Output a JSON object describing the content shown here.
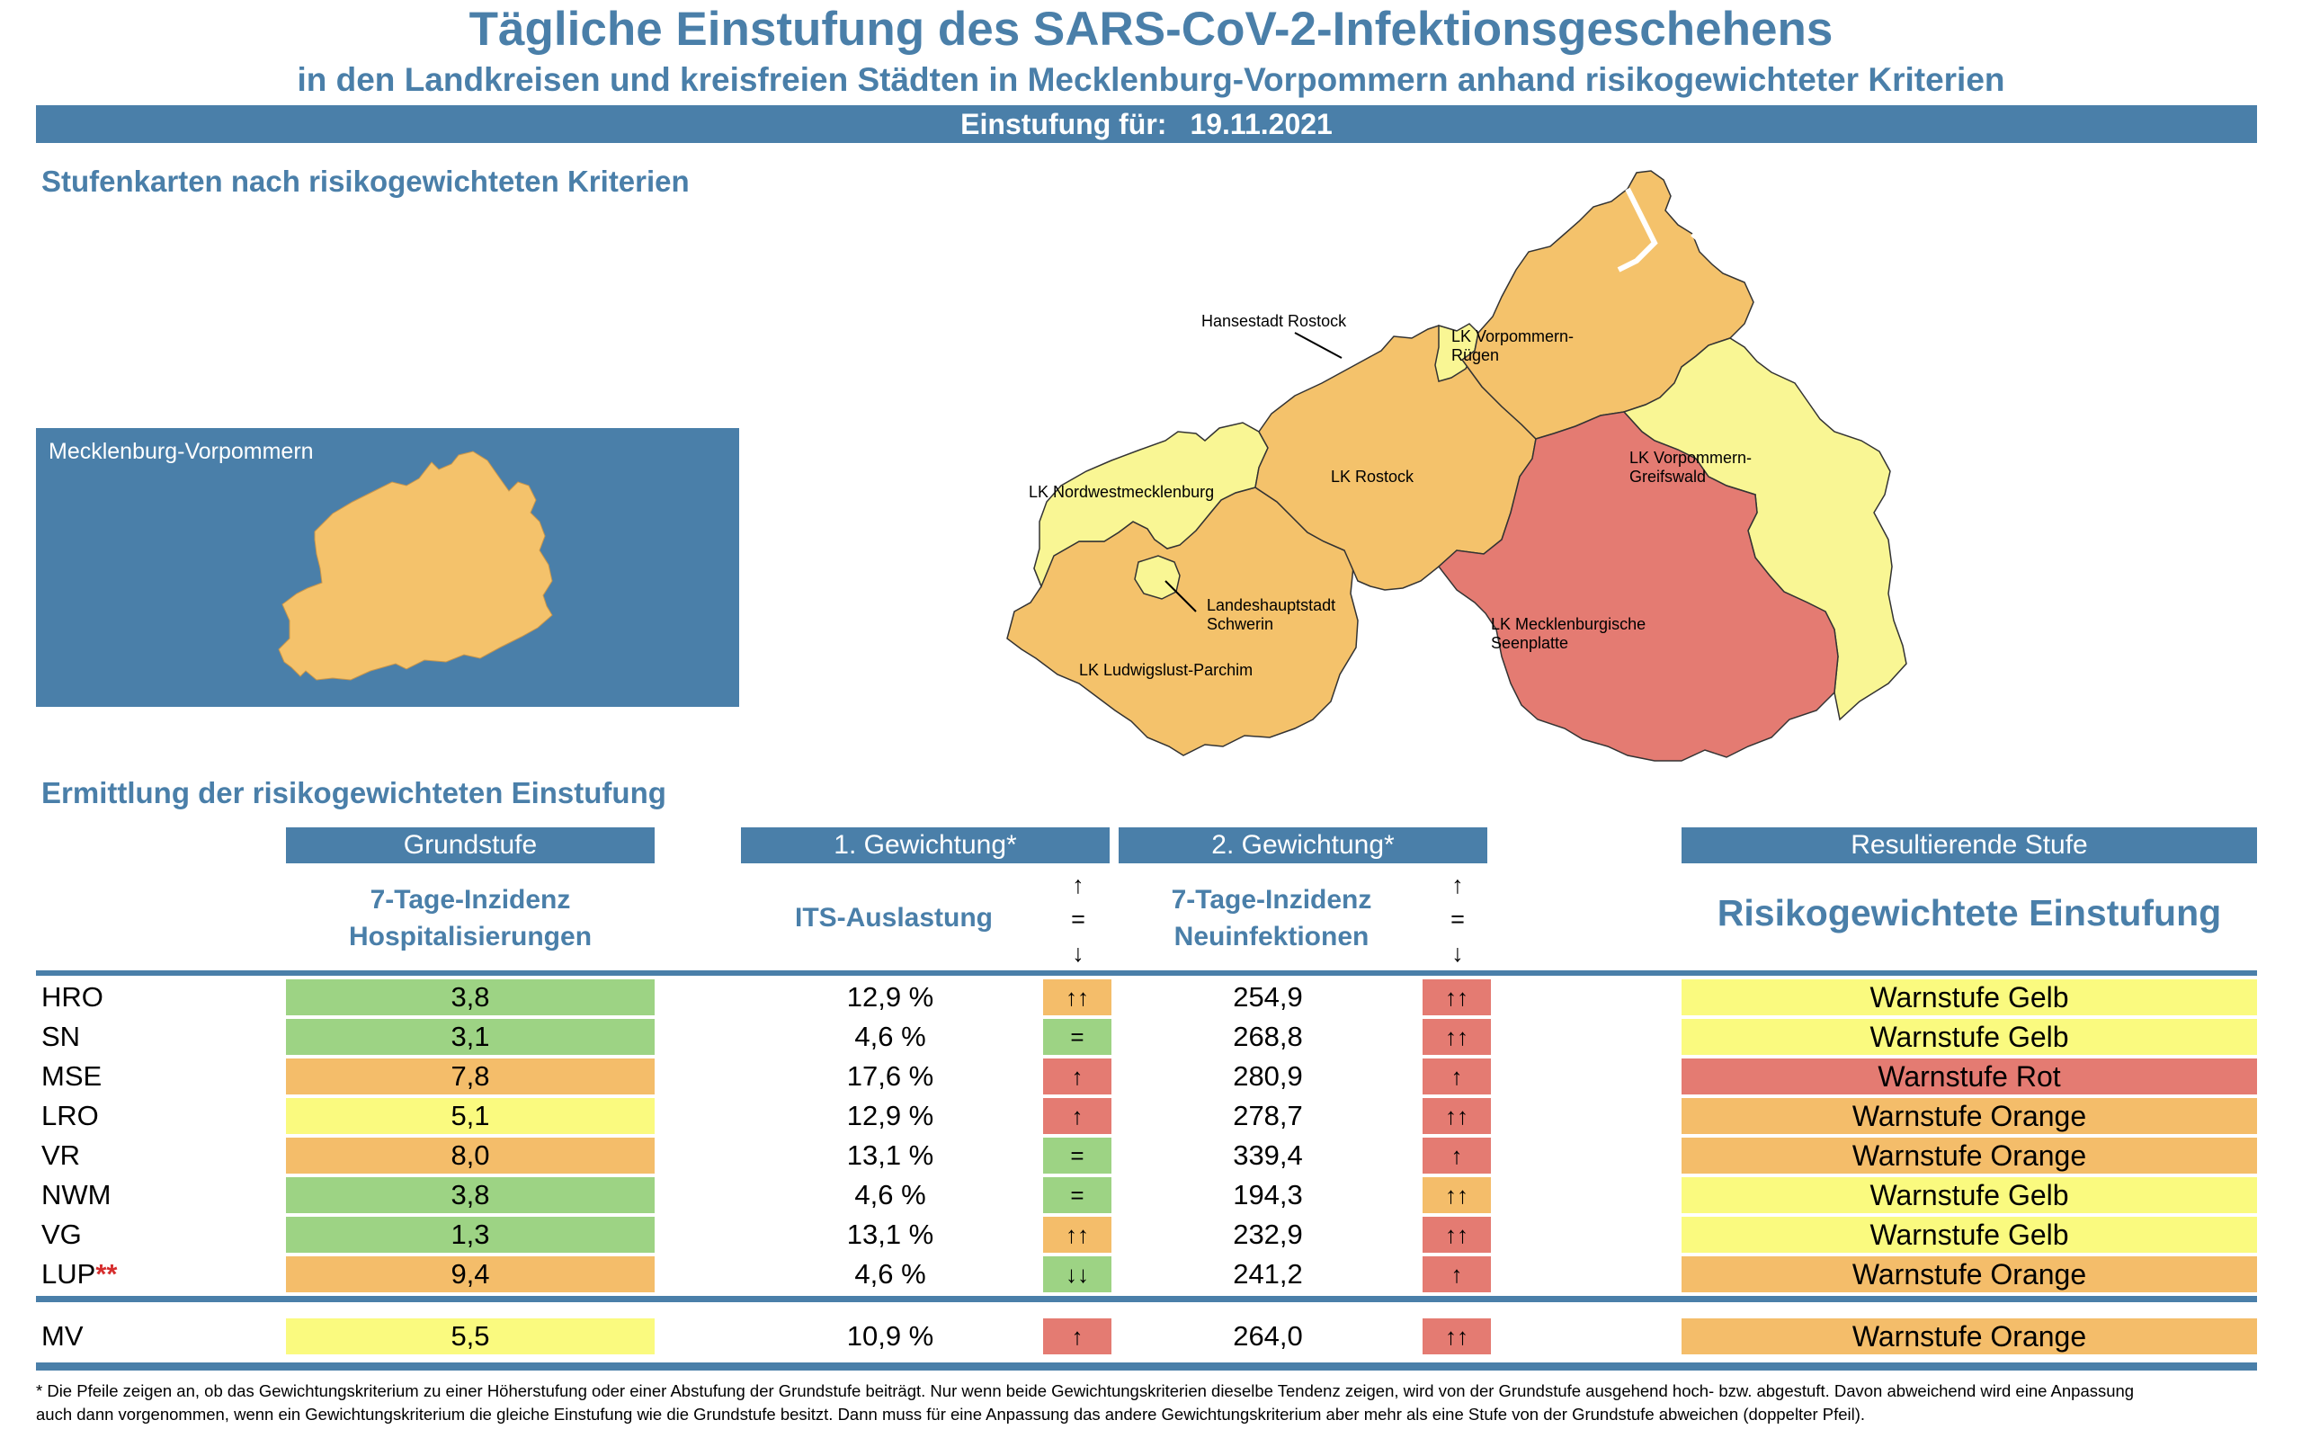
{
  "header": {
    "title": "Tägliche Einstufung des SARS-CoV-2-Infektionsgeschehens",
    "subtitle": "in den Landkreisen und kreisfreien Städten in Mecklenburg-Vorpommern anhand risikogewichteter Kriterien",
    "date_label": "Einstufung für:",
    "date_value": "19.11.2021"
  },
  "maps": {
    "section_title": "Stufenkarten nach risikogewichteten Kriterien",
    "overview_label": "Mecklenburg-Vorpommern",
    "district_labels": {
      "rostock_city": "Hansestadt Rostock",
      "vr_line1": "LK Vorpommern-",
      "vr_line2": "Rügen",
      "vg_line1": "LK Vorpommern-",
      "vg_line2": "Greifswald",
      "nwm": "LK Nordwestmecklenburg",
      "lro": "LK Rostock",
      "sn_line1": "Landeshauptstadt",
      "sn_line2": "Schwerin",
      "mse_line1": "LK Mecklenburgische",
      "mse_line2": "Seenplatte",
      "lup": "LK Ludwigslust-Parchim"
    }
  },
  "table": {
    "section_title": "Ermittlung der risikogewichteten Einstufung",
    "col_headers": {
      "grundstufe": "Grundstufe",
      "gew1": "1. Gewichtung*",
      "gew2": "2. Gewichtung*",
      "result": "Resultierende Stufe"
    },
    "sub_headers": {
      "grund_line1": "7-Tage-Inzidenz",
      "grund_line2": "Hospitalisierungen",
      "gew1": "ITS-Auslastung",
      "gew2_line1": "7-Tage-Inzidenz",
      "gew2_line2": "Neuinfektionen",
      "result": "Risikogewichtete Einstufung"
    },
    "arrow_legend": {
      "up": "↑",
      "eq": "=",
      "down": "↓"
    },
    "rows": [
      {
        "name": "HRO",
        "stars": "",
        "hosp": "3,8",
        "its": "12,9 %",
        "its_trend": "↑↑",
        "inz": "254,9",
        "inz_trend": "↑↑",
        "result": "Warnstufe Gelb"
      },
      {
        "name": "SN",
        "stars": "",
        "hosp": "3,1",
        "its": "4,6 %",
        "its_trend": "=",
        "inz": "268,8",
        "inz_trend": "↑↑",
        "result": "Warnstufe Gelb"
      },
      {
        "name": "MSE",
        "stars": "",
        "hosp": "7,8",
        "its": "17,6 %",
        "its_trend": "↑",
        "inz": "280,9",
        "inz_trend": "↑",
        "result": "Warnstufe Rot"
      },
      {
        "name": "LRO",
        "stars": "",
        "hosp": "5,1",
        "its": "12,9 %",
        "its_trend": "↑",
        "inz": "278,7",
        "inz_trend": "↑↑",
        "result": "Warnstufe Orange"
      },
      {
        "name": "VR",
        "stars": "",
        "hosp": "8,0",
        "its": "13,1 %",
        "its_trend": "=",
        "inz": "339,4",
        "inz_trend": "↑",
        "result": "Warnstufe Orange"
      },
      {
        "name": "NWM",
        "stars": "",
        "hosp": "3,8",
        "its": "4,6 %",
        "its_trend": "=",
        "inz": "194,3",
        "inz_trend": "↑↑",
        "result": "Warnstufe Gelb"
      },
      {
        "name": "VG",
        "stars": "",
        "hosp": "1,3",
        "its": "13,1 %",
        "its_trend": "↑↑",
        "inz": "232,9",
        "inz_trend": "↑↑",
        "result": "Warnstufe Gelb"
      },
      {
        "name": "LUP",
        "stars": "**",
        "hosp": "9,4",
        "its": "4,6 %",
        "its_trend": "↓↓",
        "inz": "241,2",
        "inz_trend": "↑",
        "result": "Warnstufe Orange"
      }
    ],
    "total": {
      "name": "MV",
      "stars": "",
      "hosp": "5,5",
      "its": "10,9 %",
      "its_trend": "↑",
      "inz": "264,0",
      "inz_trend": "↑↑",
      "result": "Warnstufe Orange"
    }
  },
  "colors": {
    "blue": "#4a7fa9",
    "green": "#9dd384",
    "yellow": "#fafa7f",
    "orange": "#f4bd6a",
    "red": "#e47b72",
    "map_orange": "#f4c26b",
    "map_yellow": "#f9f694",
    "map_red": "#e47b72"
  },
  "footnote": {
    "line1": "* Die Pfeile zeigen an, ob das Gewichtungskriterium zu einer Höherstufung oder einer Abstufung der Grundstufe beiträgt. Nur wenn beide Gewichtungskriterien dieselbe Tendenz zeigen, wird von der Grundstufe ausgehend hoch- bzw. abgestuft.  Davon abweichend wird eine Anpassung",
    "line2": "auch dann vorgenommen, wenn ein Gewichtungskriterium die gleiche Einstufung wie die Grundstufe besitzt. Dann muss für eine Anpassung das andere Gewichtungskriterium aber mehr als eine Stufe von der Grundstufe abweichen (doppelter Pfeil)."
  }
}
